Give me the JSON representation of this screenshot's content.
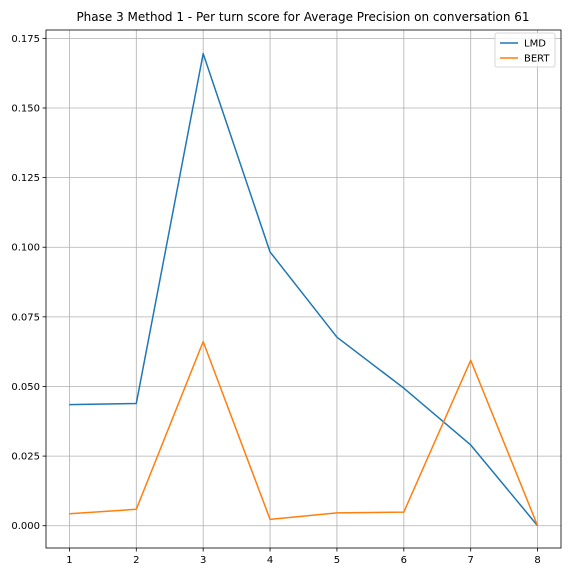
{
  "chart_data": {
    "type": "line",
    "title": "Phase 3 Method 1 - Per turn score for Average Precision on conversation 61",
    "xlabel": "",
    "ylabel": "",
    "x": [
      1,
      2,
      3,
      4,
      5,
      6,
      7,
      8
    ],
    "series": [
      {
        "name": "LMD",
        "color": "#1f77b4",
        "values": [
          0.0435,
          0.0439,
          0.1695,
          0.0983,
          0.0677,
          0.0494,
          0.029,
          0.0
        ]
      },
      {
        "name": "BERT",
        "color": "#ff7f0e",
        "values": [
          0.0043,
          0.0059,
          0.0661,
          0.0023,
          0.0046,
          0.0049,
          0.0594,
          0.0
        ]
      }
    ],
    "xlim": [
      0.65,
      8.35
    ],
    "ylim": [
      -0.008,
      0.178
    ],
    "xticks": [
      "1",
      "2",
      "3",
      "4",
      "5",
      "6",
      "7",
      "8"
    ],
    "yticks": [
      "0.000",
      "0.025",
      "0.050",
      "0.075",
      "0.100",
      "0.125",
      "0.150",
      "0.175"
    ],
    "grid": true,
    "legend_position": "top-right"
  }
}
